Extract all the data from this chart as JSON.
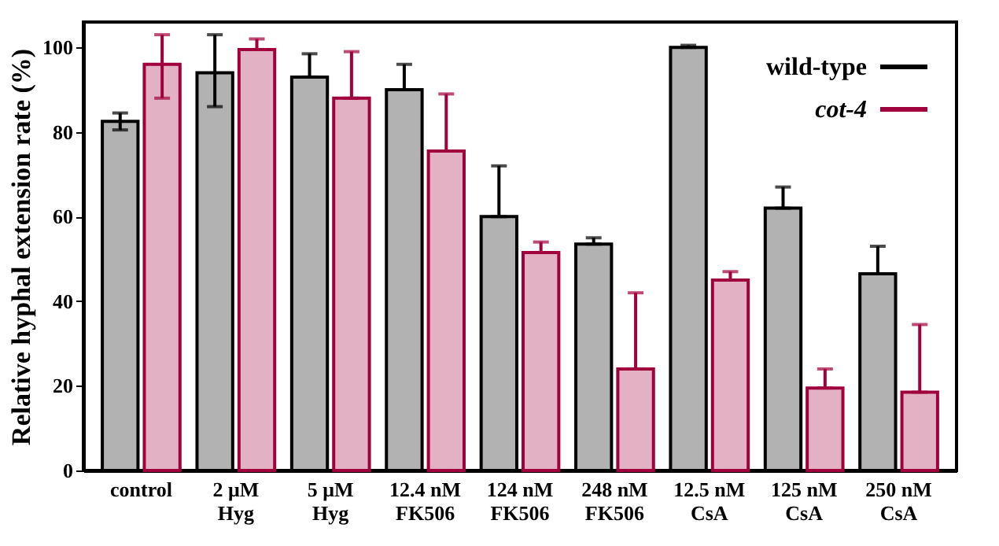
{
  "chart_data": {
    "type": "bar",
    "ylabel": "Relative hyphal extension rate (%)",
    "categories": [
      "control",
      "2 μM\nHyg",
      "5 μM\nHyg",
      "12.4 nM\nFK506",
      "124 nM\nFK506",
      "248 nM\nFK506",
      "12.5 nM\nCsA",
      "125 nM\nCsA",
      "250 nM\nCsA"
    ],
    "series": [
      {
        "name": "wild-type",
        "color": "#000000",
        "values": [
          82.5,
          94,
          93,
          90,
          60,
          53.5,
          100,
          62,
          46.5
        ],
        "errors": [
          [
            80.5,
            84.5
          ],
          [
            86,
            103
          ],
          [
            93,
            98.5
          ],
          [
            90,
            96
          ],
          [
            60,
            72
          ],
          [
            53.5,
            55
          ],
          [
            100,
            100.5
          ],
          [
            62,
            67
          ],
          [
            46.5,
            53
          ]
        ]
      },
      {
        "name": "cot-4",
        "color": "#a0003c",
        "values": [
          96,
          99.5,
          88,
          75.5,
          51.5,
          24,
          45,
          19.5,
          18.5
        ],
        "errors": [
          [
            88,
            103
          ],
          [
            99.5,
            102
          ],
          [
            88,
            99
          ],
          [
            75.5,
            89
          ],
          [
            51.5,
            54
          ],
          [
            24,
            42
          ],
          [
            45,
            47
          ],
          [
            19.5,
            24
          ],
          [
            18.5,
            34.5
          ]
        ]
      }
    ],
    "ylim": [
      0,
      106
    ],
    "yticks": [
      0,
      20,
      40,
      60,
      80,
      100
    ],
    "grid": false,
    "legend": "top right"
  }
}
